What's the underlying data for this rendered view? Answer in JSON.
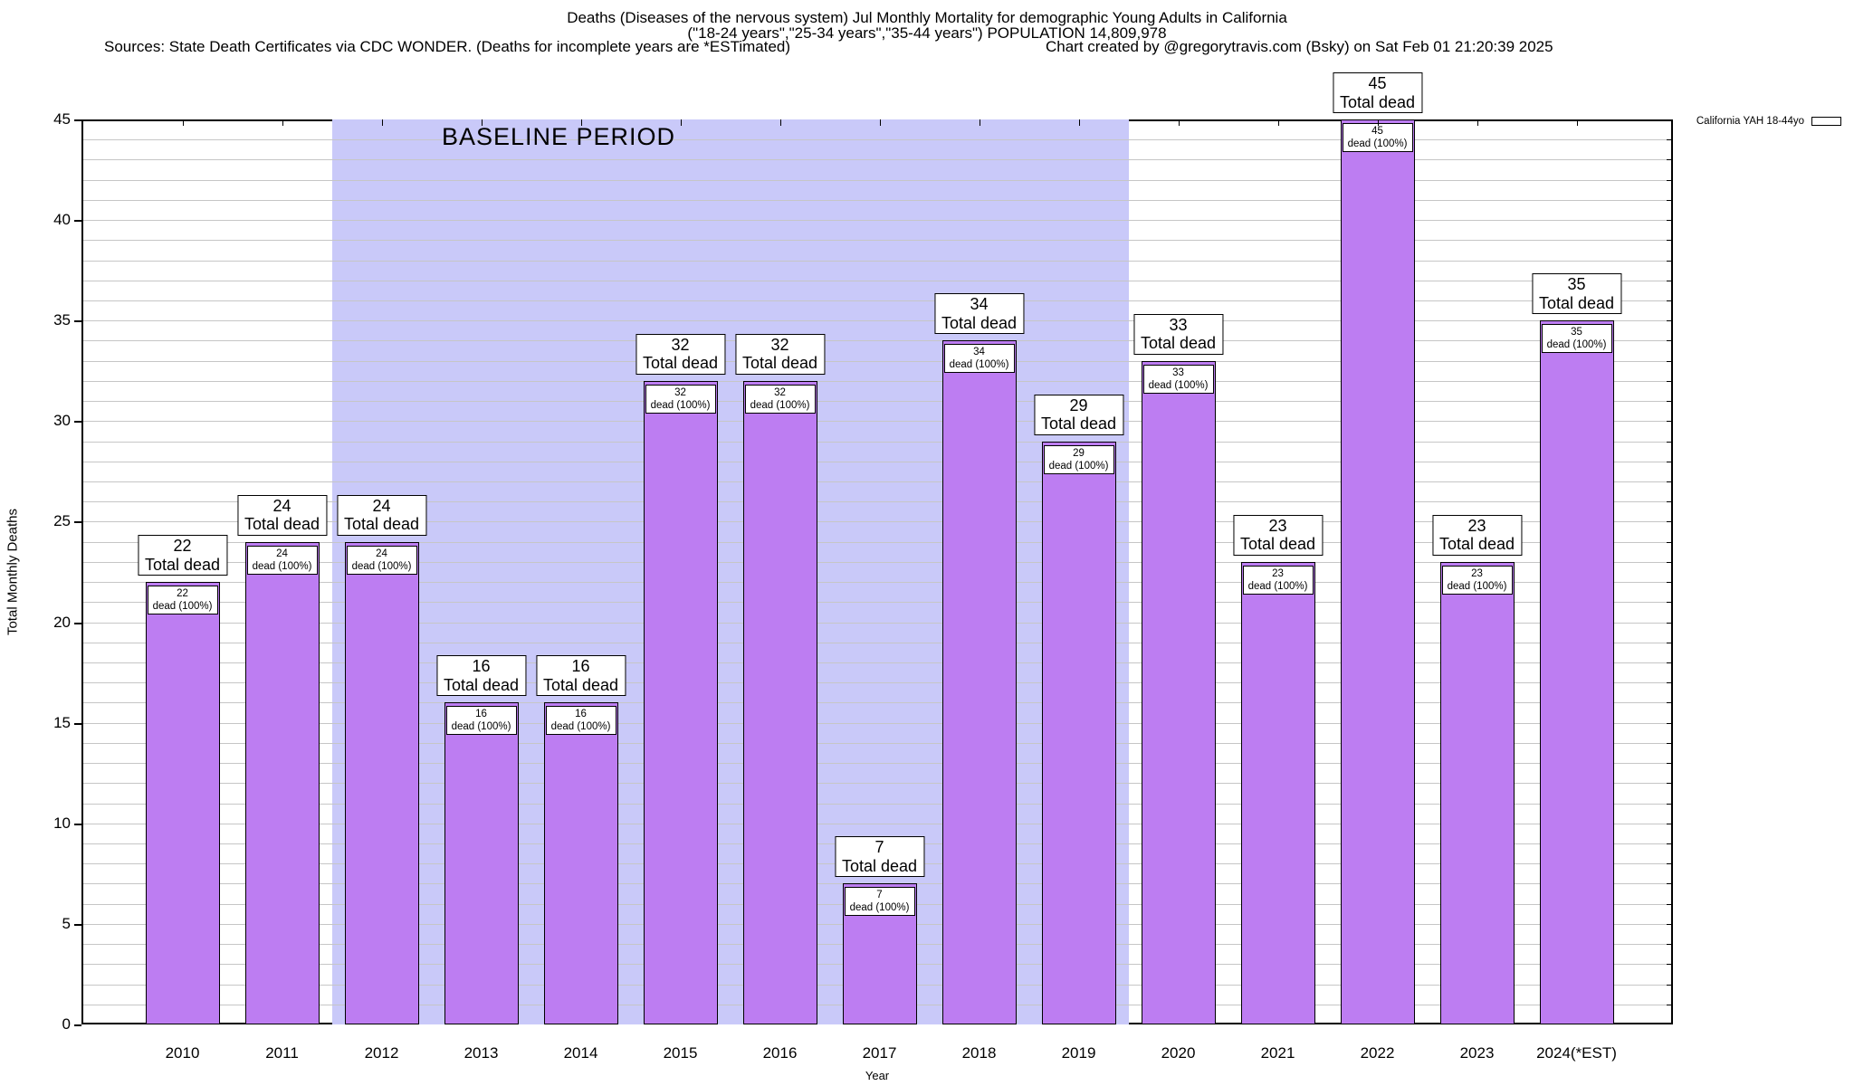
{
  "header": {
    "title_line1": "Deaths (Diseases of the nervous system) Jul Monthly Mortality for demographic Young Adults in California",
    "title_line2": "(\"18-24 years\",\"25-34 years\",\"35-44 years\") POPULATION 14,809,978",
    "sources": "Sources: State Death Certificates via CDC WONDER. (Deaths for incomplete years are *ESTimated)",
    "credit": "Chart created by @gregorytravis.com (Bsky) on Sat Feb 01 21:20:39 2025"
  },
  "legend": {
    "label": "California YAH 18-44yo",
    "swatch_color": "#bd7df2"
  },
  "chart_data": {
    "type": "bar",
    "title": "Deaths (Diseases of the nervous system) Jul Monthly Mortality for demographic Young Adults in California",
    "categories": [
      "2010",
      "2011",
      "2012",
      "2013",
      "2014",
      "2015",
      "2016",
      "2017",
      "2018",
      "2019",
      "2020",
      "2021",
      "2022",
      "2023",
      "2024(*EST)"
    ],
    "series": [
      {
        "name": "California YAH 18-44yo",
        "values": [
          22,
          24,
          24,
          16,
          16,
          32,
          32,
          7,
          34,
          29,
          33,
          23,
          45,
          23,
          35
        ]
      }
    ],
    "values": [
      22,
      24,
      24,
      16,
      16,
      32,
      32,
      7,
      34,
      29,
      33,
      23,
      45,
      23,
      35
    ],
    "bar_total_suffix": "Total dead",
    "bar_inner_suffix": "dead (100%)",
    "xlabel": "Year",
    "ylabel": "Total Monthly Deaths",
    "ylim": [
      0,
      45
    ],
    "ytick_major": 5,
    "ytick_minor": 1,
    "grid": true,
    "legend_position": "top-right",
    "bar_color": "#bd7df2",
    "bar_border_color": "#000000",
    "grid_color": "#c6c6c6",
    "baseline_region": {
      "label": "BASELINE PERIOD",
      "start_category": "2012",
      "end_category": "2019",
      "color": "#c9c9f9"
    }
  }
}
